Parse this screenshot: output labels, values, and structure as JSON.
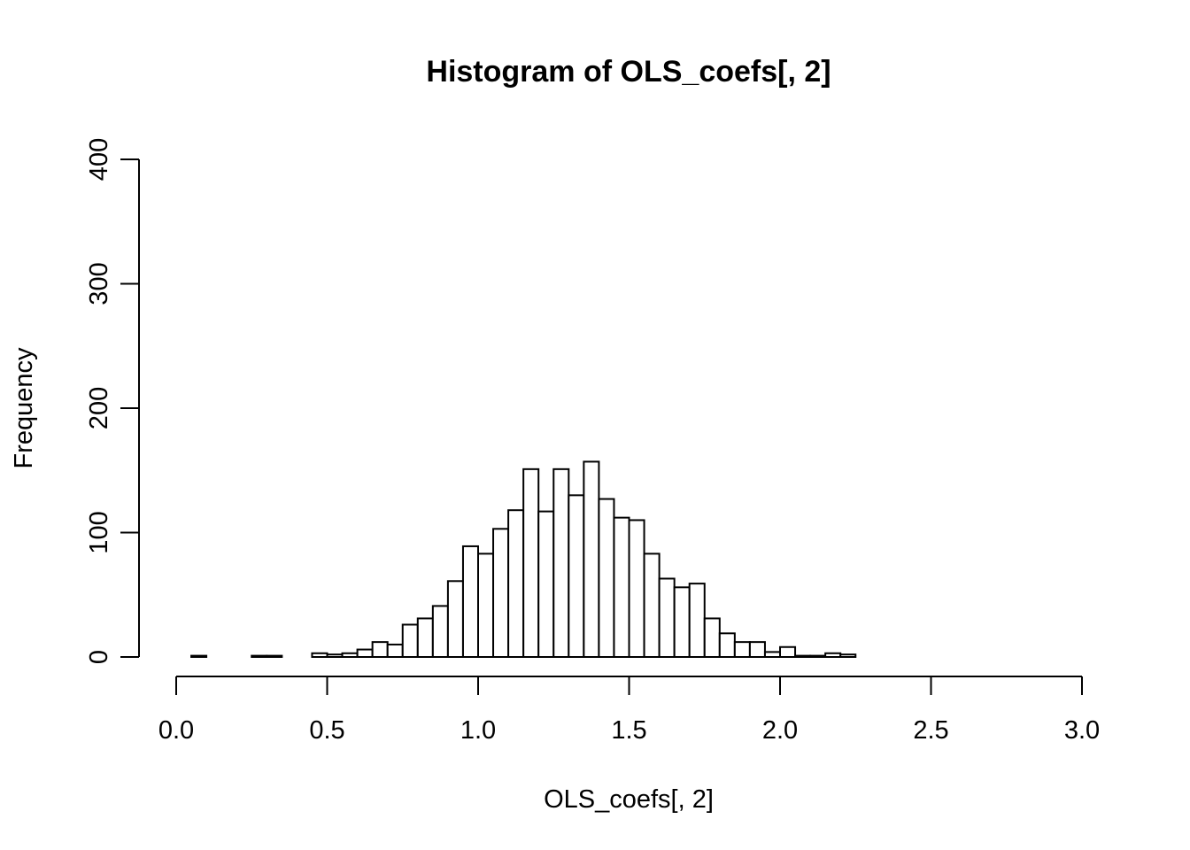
{
  "chart_data": {
    "type": "bar",
    "title": "Histogram of OLS_coefs[, 2]",
    "xlabel": "OLS_coefs[, 2]",
    "ylabel": "Frequency",
    "xlim": [
      0.0,
      3.0
    ],
    "ylim": [
      0,
      400
    ],
    "x_ticks": [
      "0.0",
      "0.5",
      "1.0",
      "1.5",
      "2.0",
      "2.5",
      "3.0"
    ],
    "y_ticks": [
      "0",
      "100",
      "200",
      "300",
      "400"
    ],
    "bin_width": 0.05,
    "bins_start": [
      0.05,
      0.1,
      0.15,
      0.2,
      0.25,
      0.3,
      0.35,
      0.4,
      0.45,
      0.5,
      0.55,
      0.6,
      0.65,
      0.7,
      0.75,
      0.8,
      0.85,
      0.9,
      0.95,
      1.0,
      1.05,
      1.1,
      1.15,
      1.2,
      1.25,
      1.3,
      1.35,
      1.4,
      1.45,
      1.5,
      1.55,
      1.6,
      1.65,
      1.7,
      1.75,
      1.8,
      1.85,
      1.9,
      1.95,
      2.0,
      2.05,
      2.1,
      2.15,
      2.2
    ],
    "values": [
      1,
      0,
      0,
      0,
      1,
      1,
      0,
      0,
      3,
      2,
      3,
      6,
      12,
      10,
      26,
      31,
      41,
      61,
      89,
      83,
      103,
      118,
      151,
      117,
      151,
      130,
      157,
      127,
      112,
      110,
      83,
      63,
      56,
      59,
      31,
      19,
      12,
      12,
      4,
      8,
      1,
      1,
      3,
      2
    ],
    "grid": false,
    "legend": "none"
  }
}
